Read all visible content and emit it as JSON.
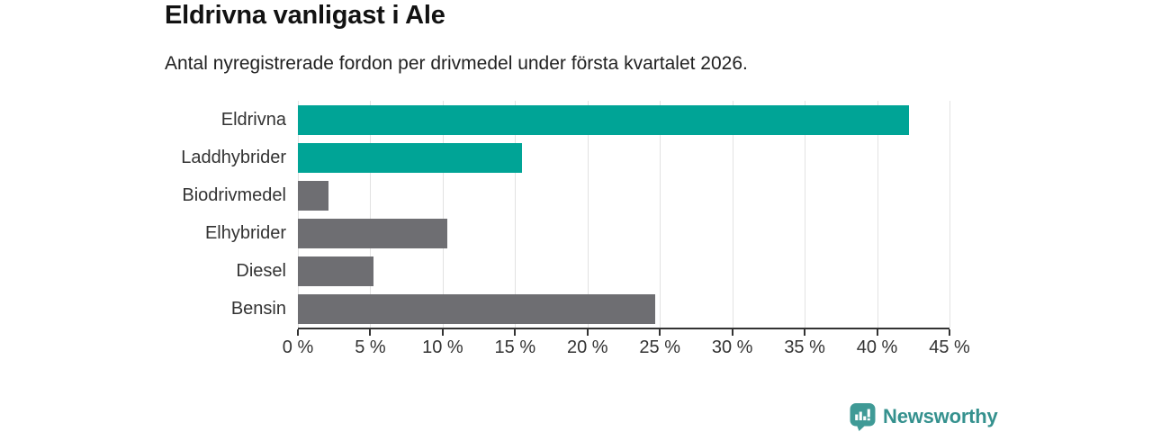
{
  "header": {
    "title": "Eldrivna vanligast i Ale",
    "subtitle": "Antal nyregistrerade fordon per drivmedel under första kvartalet 2026."
  },
  "chart_data": {
    "type": "bar",
    "orientation": "horizontal",
    "title": "Eldrivna vanligast i Ale",
    "subtitle": "Antal nyregistrerade fordon per drivmedel under första kvartalet 2026.",
    "categories": [
      "Eldrivna",
      "Laddhybrider",
      "Biodrivmedel",
      "Elhybrider",
      "Diesel",
      "Bensin"
    ],
    "values": [
      42.2,
      15.5,
      2.1,
      10.3,
      5.2,
      24.7
    ],
    "unit": "%",
    "xlim": [
      0,
      45
    ],
    "x_tick_values": [
      0,
      5,
      10,
      15,
      20,
      25,
      30,
      35,
      40,
      45
    ],
    "x_tick_labels": [
      "0 %",
      "5 %",
      "10 %",
      "15 %",
      "20 %",
      "25 %",
      "30 %",
      "35 %",
      "40 %",
      "45 %"
    ],
    "grid": true,
    "legend": "none",
    "bar_colors": [
      "#00a496",
      "#00a496",
      "#6e6e72",
      "#6e6e72",
      "#6e6e72",
      "#6e6e72"
    ],
    "highlight_color": "#00a496",
    "default_color": "#6e6e72",
    "gridline_color": "#e2e2e2",
    "axis_color": "#333333",
    "label_color": "#333333"
  },
  "footer": {
    "brand": "Newsworthy",
    "brand_color": "#35918e",
    "logo_icon": "bar-chart-pin-icon",
    "logo_bg_color": "#3f9a96"
  }
}
